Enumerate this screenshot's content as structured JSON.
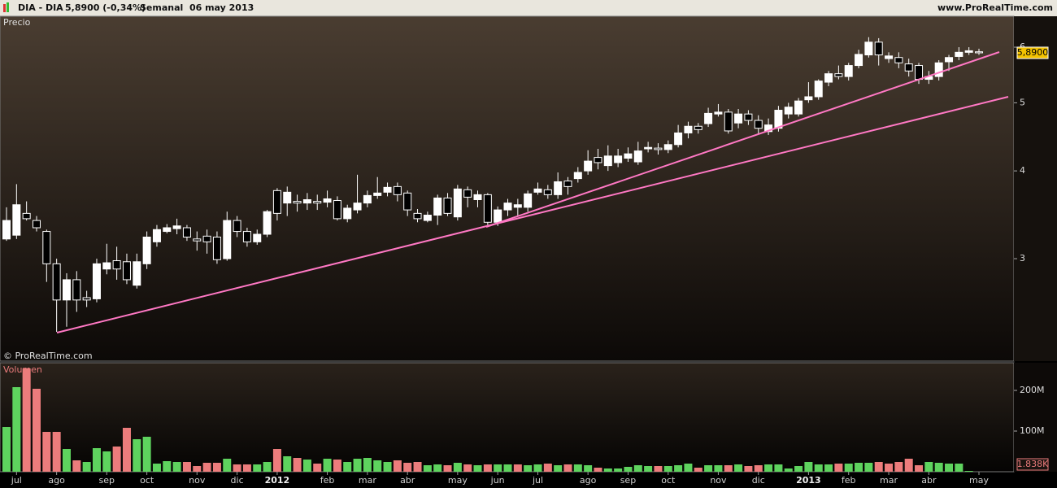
{
  "header": {
    "symbol": "DIA - DIA",
    "quote": "5,8900 (-0,34%)",
    "period": "Semanal  06 may 2013",
    "site": "www.ProRealTime.com",
    "copyright": "© ProRealTime.com"
  },
  "chart_data": [
    {
      "type": "candlestick",
      "title": "Precio",
      "categories": [
        null,
        "jul",
        null,
        null,
        null,
        "ago",
        null,
        null,
        null,
        null,
        "sep",
        null,
        null,
        null,
        "oct",
        null,
        null,
        null,
        null,
        "nov",
        null,
        null,
        null,
        "dic",
        null,
        null,
        null,
        "2012",
        null,
        null,
        null,
        null,
        "feb",
        null,
        null,
        null,
        "mar",
        null,
        null,
        null,
        "abr",
        null,
        null,
        null,
        null,
        "may",
        null,
        null,
        null,
        "jun",
        null,
        null,
        null,
        "jul",
        null,
        null,
        null,
        null,
        "ago",
        null,
        null,
        null,
        "sep",
        null,
        null,
        null,
        "oct",
        null,
        null,
        null,
        null,
        "nov",
        null,
        null,
        null,
        "dic",
        null,
        null,
        null,
        null,
        "2013",
        null,
        null,
        null,
        "feb",
        null,
        null,
        null,
        "mar",
        null,
        null,
        null,
        "abr",
        null,
        null,
        null,
        null,
        "may"
      ],
      "open": [
        3.2,
        3.24,
        3.48,
        3.4,
        3.28,
        2.95,
        2.62,
        2.8,
        2.64,
        2.63,
        2.9,
        2.98,
        2.97,
        2.75,
        2.95,
        3.17,
        3.28,
        3.31,
        3.32,
        3.2,
        3.23,
        3.22,
        3.0,
        3.4,
        3.28,
        3.17,
        3.25,
        3.75,
        3.6,
        3.62,
        3.6,
        3.62,
        3.61,
        3.63,
        3.42,
        3.52,
        3.6,
        3.69,
        3.73,
        3.8,
        3.72,
        3.48,
        3.4,
        3.46,
        3.66,
        3.44,
        3.76,
        3.64,
        3.7,
        3.38,
        3.52,
        3.55,
        3.55,
        3.73,
        3.76,
        3.7,
        3.87,
        3.9,
        4.0,
        4.18,
        4.07,
        4.11,
        4.17,
        4.12,
        4.3,
        4.31,
        4.29,
        4.36,
        4.53,
        4.63,
        4.67,
        4.82,
        4.85,
        4.68,
        4.82,
        4.72,
        4.55,
        4.6,
        4.82,
        4.82,
        5.05,
        5.1,
        5.35,
        5.5,
        5.45,
        5.65,
        5.85,
        6.1,
        5.78,
        5.8,
        5.68,
        5.65,
        5.4,
        5.45,
        5.72,
        5.82,
        5.9,
        5.91
      ],
      "high": [
        3.55,
        3.83,
        3.62,
        3.45,
        3.3,
        3.0,
        2.86,
        2.88,
        2.7,
        3.0,
        3.15,
        3.12,
        3.05,
        3.05,
        3.28,
        3.35,
        3.36,
        3.42,
        3.35,
        3.28,
        3.3,
        3.28,
        3.5,
        3.45,
        3.32,
        3.3,
        3.52,
        3.78,
        3.8,
        3.7,
        3.72,
        3.7,
        3.75,
        3.68,
        3.58,
        3.95,
        3.75,
        3.92,
        3.85,
        3.85,
        3.75,
        3.53,
        3.5,
        3.7,
        3.72,
        3.82,
        3.8,
        3.75,
        3.72,
        3.56,
        3.65,
        3.65,
        3.75,
        3.85,
        3.82,
        3.98,
        3.92,
        4.05,
        4.28,
        4.3,
        4.35,
        4.3,
        4.32,
        4.4,
        4.4,
        4.38,
        4.42,
        4.65,
        4.7,
        4.68,
        4.92,
        4.98,
        4.9,
        4.9,
        4.88,
        4.8,
        4.75,
        4.95,
        5.0,
        5.08,
        5.35,
        5.4,
        5.55,
        5.65,
        5.7,
        5.95,
        6.2,
        6.18,
        5.9,
        5.9,
        5.78,
        5.7,
        5.55,
        5.75,
        5.85,
        6.0,
        6.0,
        5.97
      ],
      "low": [
        3.18,
        3.2,
        3.4,
        3.28,
        2.78,
        2.36,
        2.4,
        2.52,
        2.56,
        2.6,
        2.85,
        2.8,
        2.76,
        2.72,
        2.9,
        3.12,
        3.26,
        3.25,
        3.18,
        3.08,
        3.05,
        2.95,
        2.98,
        3.22,
        3.12,
        3.14,
        3.22,
        3.4,
        3.45,
        3.5,
        3.52,
        3.52,
        3.55,
        3.4,
        3.38,
        3.48,
        3.55,
        3.65,
        3.68,
        3.62,
        3.45,
        3.38,
        3.38,
        3.35,
        3.45,
        3.4,
        3.55,
        3.55,
        3.35,
        3.34,
        3.45,
        3.45,
        3.5,
        3.7,
        3.65,
        3.65,
        3.7,
        3.85,
        3.95,
        4.02,
        4.0,
        4.05,
        4.12,
        4.08,
        4.25,
        4.22,
        4.24,
        4.32,
        4.45,
        4.52,
        4.62,
        4.78,
        4.52,
        4.6,
        4.65,
        4.52,
        4.5,
        4.55,
        4.75,
        4.78,
        5.0,
        5.05,
        5.28,
        5.4,
        5.38,
        5.6,
        5.8,
        5.65,
        5.7,
        5.6,
        5.45,
        5.32,
        5.32,
        5.38,
        5.55,
        5.75,
        5.85,
        5.85
      ],
      "close": [
        3.4,
        3.58,
        3.42,
        3.32,
        2.95,
        2.62,
        2.8,
        2.62,
        2.62,
        2.95,
        2.96,
        2.9,
        2.8,
        2.97,
        3.22,
        3.3,
        3.32,
        3.34,
        3.22,
        3.18,
        3.17,
        2.99,
        3.4,
        3.28,
        3.17,
        3.25,
        3.5,
        3.48,
        3.73,
        3.6,
        3.64,
        3.6,
        3.65,
        3.42,
        3.54,
        3.6,
        3.69,
        3.72,
        3.79,
        3.7,
        3.52,
        3.42,
        3.46,
        3.66,
        3.48,
        3.77,
        3.67,
        3.7,
        3.38,
        3.52,
        3.6,
        3.58,
        3.71,
        3.77,
        3.7,
        3.86,
        3.8,
        3.98,
        4.13,
        4.11,
        4.2,
        4.2,
        4.23,
        4.27,
        4.32,
        4.29,
        4.36,
        4.53,
        4.63,
        4.58,
        4.83,
        4.85,
        4.56,
        4.82,
        4.72,
        4.6,
        4.65,
        4.88,
        4.93,
        5.03,
        5.1,
        5.37,
        5.5,
        5.45,
        5.65,
        5.86,
        6.1,
        5.85,
        5.83,
        5.7,
        5.55,
        5.4,
        5.45,
        5.7,
        5.8,
        5.9,
        5.93,
        5.89
      ],
      "last_label": "5,8900",
      "ylim": [
        2.15,
        6.64
      ],
      "yticks": [
        3,
        4,
        5,
        6
      ],
      "log_scale": true,
      "up_color": "#ffffff",
      "down_color": "#000000",
      "wick_color": "#ffffff",
      "label_color": "#f2c200"
    },
    {
      "type": "bar",
      "title": "Volumen",
      "values": [
        110,
        208,
        254,
        204,
        98,
        98,
        56,
        28,
        24,
        58,
        50,
        62,
        108,
        80,
        86,
        20,
        26,
        24,
        24,
        14,
        22,
        22,
        32,
        18,
        18,
        18,
        24,
        56,
        38,
        34,
        30,
        20,
        32,
        30,
        24,
        32,
        34,
        28,
        24,
        28,
        22,
        24,
        16,
        18,
        16,
        22,
        18,
        16,
        18,
        18,
        18,
        18,
        16,
        18,
        20,
        16,
        18,
        18,
        16,
        10,
        8,
        8,
        12,
        16,
        14,
        14,
        14,
        16,
        20,
        10,
        16,
        16,
        16,
        18,
        14,
        16,
        18,
        18,
        8,
        14,
        24,
        18,
        18,
        20,
        20,
        22,
        22,
        24,
        20,
        24,
        32,
        16,
        24,
        22,
        20,
        20,
        2,
        0.001838
      ],
      "last_label": "1.838K",
      "ylim": [
        0,
        266
      ],
      "yticks": [
        {
          "value": 100,
          "label": "100M"
        },
        {
          "value": 200,
          "label": "200M"
        }
      ],
      "up_color": "#5ed35e",
      "down_color": "#ec7c7c"
    }
  ]
}
